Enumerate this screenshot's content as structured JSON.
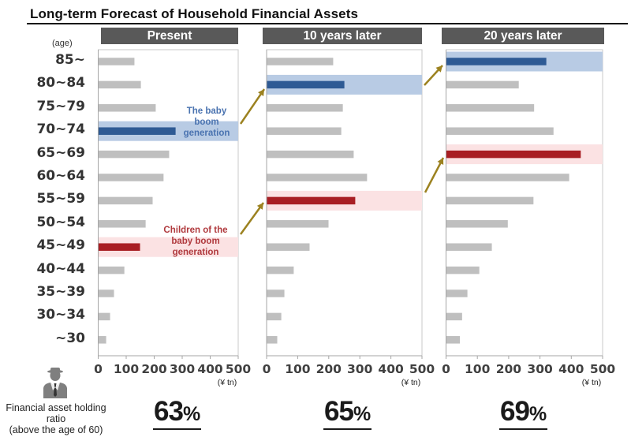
{
  "title": "Long-term Forecast of Household Financial Assets",
  "age_unit": "(age)",
  "colors": {
    "bar_default": "#bfbfbf",
    "bar_baby_boom": "#2e5a94",
    "bar_children": "#a81e23",
    "band_blue": "#b8cbe4",
    "band_red": "#fbe2e3",
    "arrow": "#9c8220",
    "header_bg": "#595959"
  },
  "annotations": {
    "baby_boom": [
      "The baby",
      "boom",
      "generation"
    ],
    "children": [
      "Children of the",
      "baby boom",
      "generation"
    ]
  },
  "ratio_label": [
    "Financial asset holding ratio",
    "(above the age of 60)"
  ],
  "ratios": [
    {
      "value": "63",
      "suffix": "%"
    },
    {
      "value": "65",
      "suffix": "%"
    },
    {
      "value": "69",
      "suffix": "%"
    }
  ],
  "chart_data": [
    {
      "type": "bar",
      "orientation": "horizontal",
      "title": "Present",
      "categories": [
        "85~",
        "80~84",
        "75~79",
        "70~74",
        "65~69",
        "60~64",
        "55~59",
        "50~54",
        "45~49",
        "40~44",
        "35~39",
        "30~34",
        "~30"
      ],
      "values": [
        128,
        151,
        204,
        275,
        252,
        232,
        193,
        168,
        148,
        92,
        55,
        41,
        27
      ],
      "highlight_baby_boom": "70~74",
      "highlight_children": "45~49",
      "xlim": [
        0,
        500
      ],
      "xticks": [
        "0",
        "100",
        "200",
        "300",
        "400",
        "500"
      ],
      "xunit": "(¥ tn)",
      "ylabel": "(age)"
    },
    {
      "type": "bar",
      "orientation": "horizontal",
      "title": "10 years later",
      "categories": [
        "85~",
        "80~84",
        "75~79",
        "70~74",
        "65~69",
        "60~64",
        "55~59",
        "50~54",
        "45~49",
        "40~44",
        "35~39",
        "30~34",
        "~30"
      ],
      "values": [
        213,
        249,
        244,
        239,
        279,
        322,
        284,
        198,
        137,
        86,
        56,
        46,
        33
      ],
      "highlight_baby_boom": "80~84",
      "highlight_children": "55~59",
      "xlim": [
        0,
        500
      ],
      "xticks": [
        "0",
        "100",
        "200",
        "300",
        "400",
        "500"
      ],
      "xunit": "(¥ tn)"
    },
    {
      "type": "bar",
      "orientation": "horizontal",
      "title": "20 years later",
      "categories": [
        "85~",
        "80~84",
        "75~79",
        "70~74",
        "65~69",
        "60~64",
        "55~59",
        "50~54",
        "45~49",
        "40~44",
        "35~39",
        "30~34",
        "~30"
      ],
      "values": [
        319,
        231,
        280,
        342,
        429,
        392,
        278,
        196,
        145,
        105,
        67,
        50,
        43
      ],
      "highlight_baby_boom": "85~",
      "highlight_children": "65~69",
      "xlim": [
        0,
        500
      ],
      "xticks": [
        "0",
        "100",
        "200",
        "300",
        "400",
        "500"
      ],
      "xunit": "(¥ tn)"
    }
  ]
}
